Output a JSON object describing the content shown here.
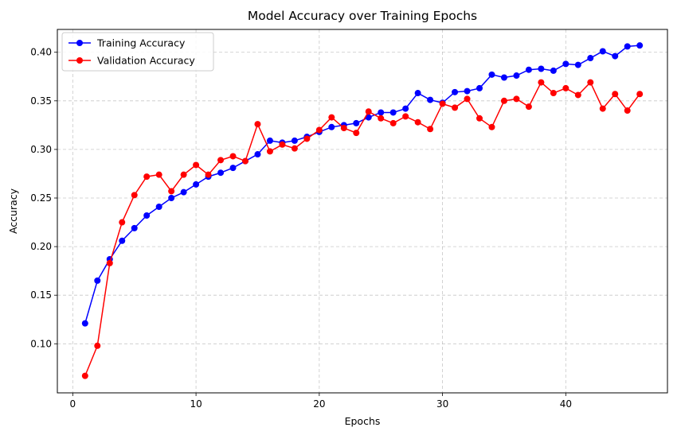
{
  "chart_data": {
    "type": "line",
    "title": "Model Accuracy over Training Epochs",
    "xlabel": "Epochs",
    "ylabel": "Accuracy",
    "xlim": [
      -1.25,
      48.25
    ],
    "ylim": [
      0.0495,
      0.4235
    ],
    "x_ticks": [
      0,
      10,
      20,
      30,
      40
    ],
    "y_ticks": [
      0.1,
      0.15,
      0.2,
      0.25,
      0.3,
      0.35,
      0.4
    ],
    "y_tick_labels": [
      "0.10",
      "0.15",
      "0.20",
      "0.25",
      "0.30",
      "0.35",
      "0.40"
    ],
    "grid": true,
    "grid_style": "dashed",
    "legend_position": "top-left",
    "x": [
      1,
      2,
      3,
      4,
      5,
      6,
      7,
      8,
      9,
      10,
      11,
      12,
      13,
      14,
      15,
      16,
      17,
      18,
      19,
      20,
      21,
      22,
      23,
      24,
      25,
      26,
      27,
      28,
      29,
      30,
      31,
      32,
      33,
      34,
      35,
      36,
      37,
      38,
      39,
      40,
      41,
      42,
      43,
      44,
      45,
      46
    ],
    "series": [
      {
        "name": "Training Accuracy",
        "color": "#0000ff",
        "marker": "circle",
        "values": [
          0.121,
          0.165,
          0.187,
          0.206,
          0.219,
          0.232,
          0.241,
          0.25,
          0.256,
          0.264,
          0.272,
          0.276,
          0.281,
          0.288,
          0.295,
          0.309,
          0.307,
          0.309,
          0.313,
          0.318,
          0.323,
          0.325,
          0.327,
          0.333,
          0.338,
          0.338,
          0.342,
          0.358,
          0.351,
          0.348,
          0.359,
          0.36,
          0.363,
          0.377,
          0.374,
          0.376,
          0.382,
          0.383,
          0.381,
          0.388,
          0.387,
          0.394,
          0.401,
          0.396,
          0.406,
          0.407
        ]
      },
      {
        "name": "Validation Accuracy",
        "color": "#ff0000",
        "marker": "circle",
        "values": [
          0.067,
          0.098,
          0.183,
          0.225,
          0.253,
          0.272,
          0.274,
          0.257,
          0.274,
          0.284,
          0.274,
          0.289,
          0.293,
          0.288,
          0.326,
          0.298,
          0.305,
          0.301,
          0.311,
          0.32,
          0.333,
          0.322,
          0.317,
          0.339,
          0.332,
          0.327,
          0.334,
          0.328,
          0.321,
          0.347,
          0.343,
          0.352,
          0.332,
          0.323,
          0.35,
          0.352,
          0.344,
          0.369,
          0.358,
          0.363,
          0.356,
          0.369,
          0.342,
          0.357,
          0.34,
          0.357
        ]
      }
    ]
  }
}
